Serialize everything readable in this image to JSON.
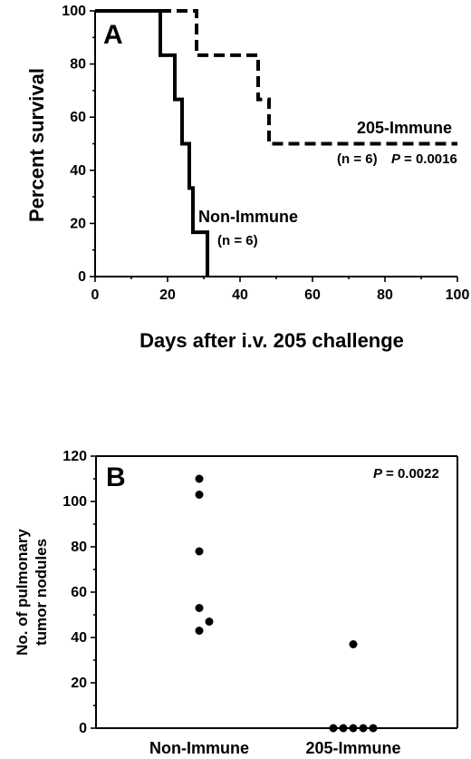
{
  "chart_data": [
    {
      "type": "line",
      "panel": "A",
      "step": true,
      "ylabel": "Percent survival",
      "xlabel": "Days after i.v. 205 challenge",
      "xlim": [
        0,
        100
      ],
      "ylim": [
        0,
        100
      ],
      "x_ticks": [
        "0",
        "20",
        "40",
        "60",
        "80",
        "100"
      ],
      "y_ticks": [
        "0",
        "20",
        "40",
        "60",
        "80",
        "100"
      ],
      "series": [
        {
          "name": "Non-Immune",
          "style": "solid",
          "n_label": "(n = 6)",
          "x": [
            0,
            18,
            22,
            24,
            26,
            27,
            28,
            31
          ],
          "y": [
            100,
            83.3,
            66.7,
            50,
            33.3,
            16.7,
            16.7,
            0
          ]
        },
        {
          "name": "205-Immune",
          "style": "dashed",
          "n_label": "(n = 6)",
          "p_label": "P",
          "p_value": "= 0.0016",
          "x": [
            0,
            28,
            45,
            48,
            100
          ],
          "y": [
            100,
            83.3,
            66.7,
            50,
            50
          ]
        }
      ]
    },
    {
      "type": "scatter",
      "panel": "B",
      "ylabel_lines": [
        "No. of pulmonary",
        "tumor nodules"
      ],
      "categories": [
        "Non-Immune",
        "205-Immune"
      ],
      "ylim": [
        0,
        120
      ],
      "y_ticks": [
        "0",
        "20",
        "40",
        "60",
        "80",
        "100",
        "120"
      ],
      "p_label": "P",
      "p_value": "= 0.0022",
      "series": [
        {
          "category": "Non-Immune",
          "values": [
            110,
            103,
            78,
            53,
            47,
            43
          ]
        },
        {
          "category": "205-Immune",
          "values": [
            37,
            0,
            0,
            0,
            0,
            0
          ]
        }
      ]
    }
  ],
  "colors": {
    "ink": "#000000",
    "background": "#ffffff"
  }
}
